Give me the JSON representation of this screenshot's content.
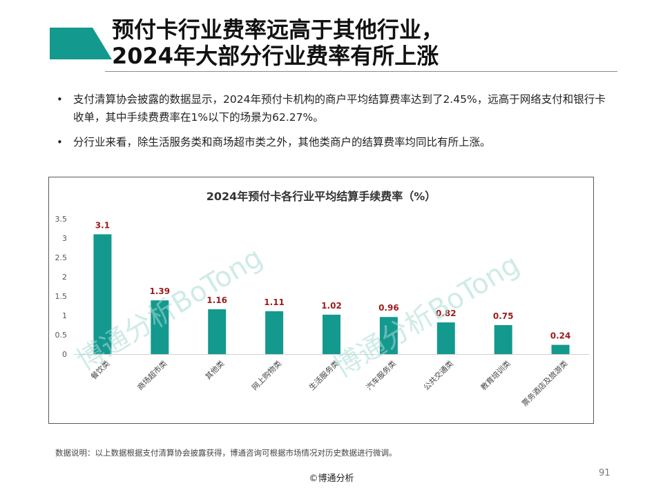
{
  "title": {
    "line1": "预付卡行业费率远高于其他行业，",
    "line2": "2024年大部分行业费率有所上涨"
  },
  "bullets": [
    "支付清算协会披露的数据显示，2024年预付卡机构的商户平均结算费率达到了2.45%，远高于网络支付和银行卡收单，其中手续费费率在1%以下的场景为62.27%。",
    "分行业来看，除生活服务类和商场超市类之外，其他类商户的结算费率均同比有所上涨。"
  ],
  "chart_data": {
    "type": "bar",
    "title": "2024年预付卡各行业平均结算手续费率（%）",
    "categories": [
      "餐饮类",
      "商场超市类",
      "其他类",
      "网上购物类",
      "生活服务类",
      "汽车服务类",
      "公共交通类",
      "教育培训类",
      "票务酒店及旅游类"
    ],
    "values": [
      3.1,
      1.39,
      1.16,
      1.11,
      1.02,
      0.96,
      0.82,
      0.75,
      0.24
    ],
    "value_labels": [
      "3.1",
      "1.39",
      "1.16",
      "1.11",
      "1.02",
      "0.96",
      "0.82",
      "0.75",
      "0.24"
    ],
    "yticks": [
      "0",
      "0.5",
      "1",
      "1.5",
      "2",
      "2.5",
      "3",
      "3.5"
    ],
    "ylim": [
      0,
      3.5
    ],
    "xlabel": "",
    "ylabel": "",
    "bar_color": "#14998f",
    "label_color": "#9b1b1b",
    "legend": "none"
  },
  "watermark": [
    "博通分析BoTong",
    "博通分析BoTong"
  ],
  "colors": {
    "accent": "#14998f"
  },
  "note": "数据说明：以上数据根据支付清算协会披露获得，博通咨询可根据市场情况对历史数据进行微调。",
  "footer": {
    "credit": "©博通分析",
    "page_number": "91"
  }
}
